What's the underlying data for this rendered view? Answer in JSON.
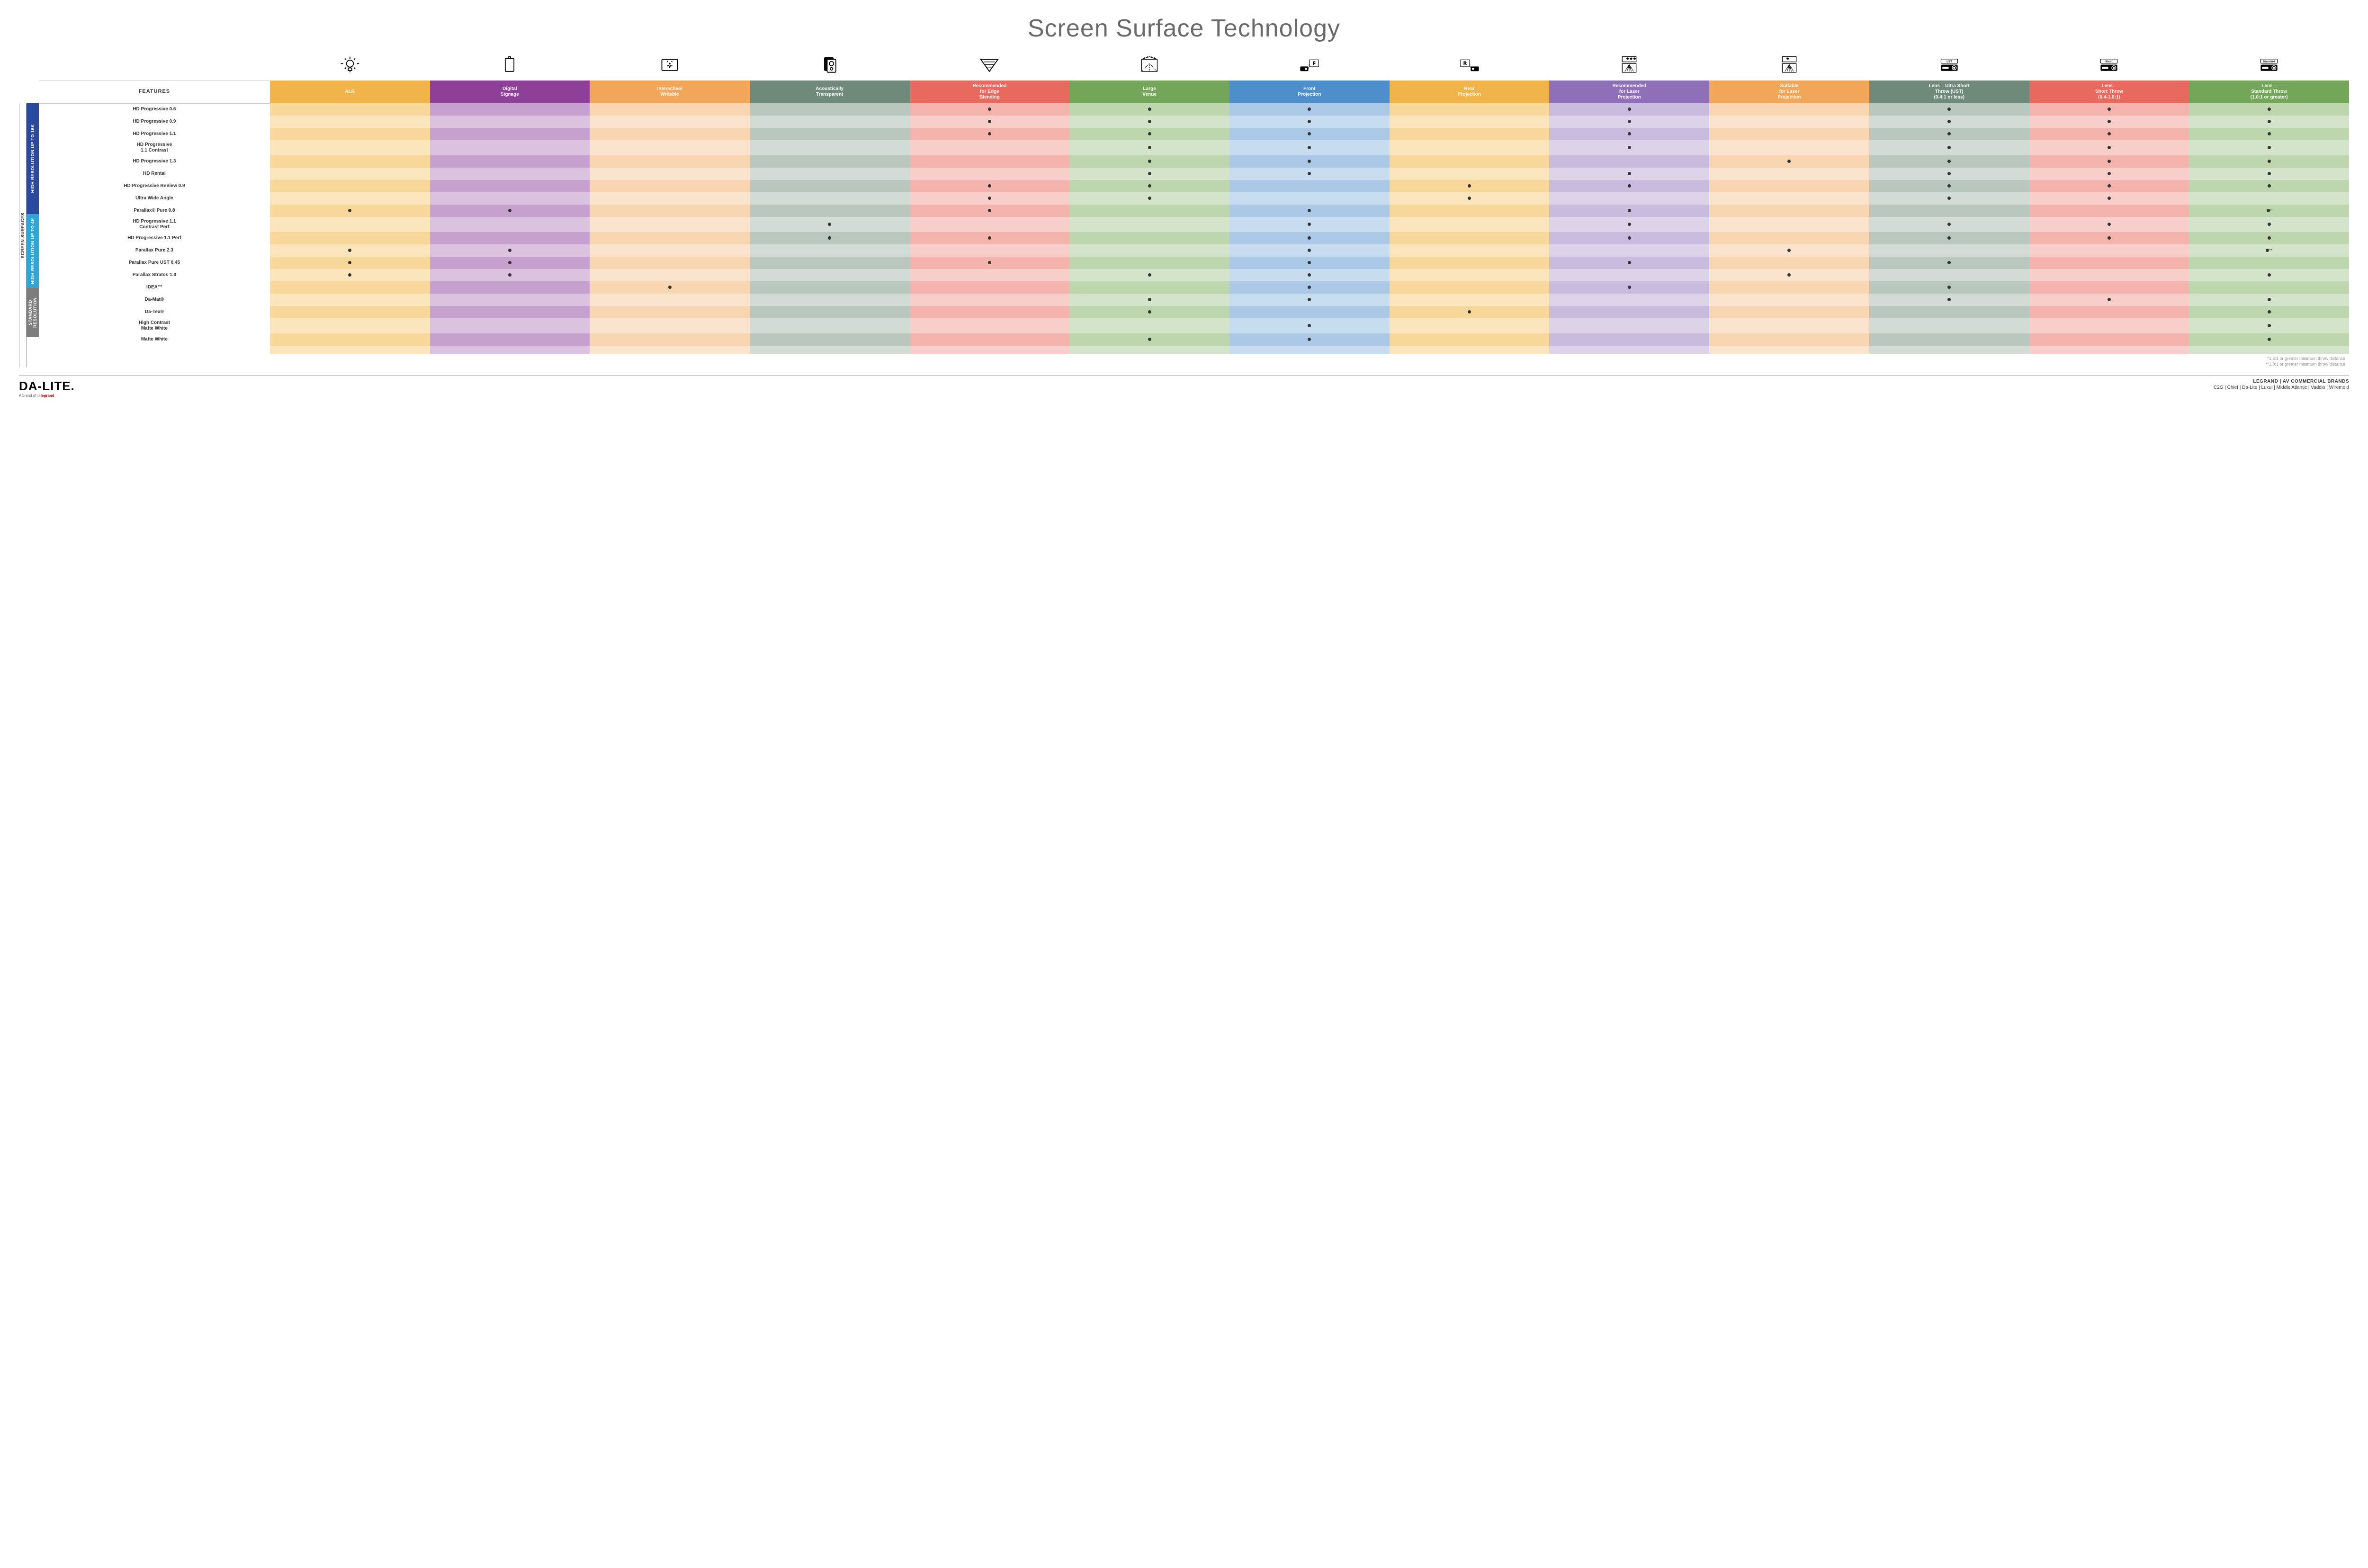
{
  "title": "Screen Surface Technology",
  "featuresHeader": "FEATURES",
  "sidebarOuter": "SCREEN SURFACES",
  "columns": [
    {
      "label": "ALR",
      "color": "#f0b44b",
      "alt": "#f8d79a"
    },
    {
      "label": "Digital\nSignage",
      "color": "#8e3f97",
      "alt": "#c7a1cd"
    },
    {
      "label": "Interactive/\nWritable",
      "color": "#f2a65a",
      "alt": "#f9d6b2"
    },
    {
      "label": "Acoustically\nTransparent",
      "color": "#6f8a7a",
      "alt": "#b9c7be"
    },
    {
      "label": "Recommended\nfor Edge\nBlending",
      "color": "#e86a5e",
      "alt": "#f4b4ad"
    },
    {
      "label": "Large\nVenue",
      "color": "#74a65a",
      "alt": "#bdd6ae"
    },
    {
      "label": "Front\nProjection",
      "color": "#4e8ecb",
      "alt": "#abc9e6"
    },
    {
      "label": "Rear\nProjection",
      "color": "#f0b44b",
      "alt": "#f8d79a"
    },
    {
      "label": "Recommended\nfor Laser\nProjection",
      "color": "#8e6fb8",
      "alt": "#c9bbdd"
    },
    {
      "label": "Suitable\nfor Laser\nProjection",
      "color": "#f2a65a",
      "alt": "#f9d6b2"
    },
    {
      "label": "Lens – Ultra Short\nThrow (UST)\n(0.4:1 or less)",
      "color": "#6f8a7a",
      "alt": "#b9c7be"
    },
    {
      "label": "Lens –\nShort Throw\n(0.4-1.0:1)",
      "color": "#e86a5e",
      "alt": "#f4b4ad"
    },
    {
      "label": "Lens –\nStandard Throw\n(1.0:1 or greater)",
      "color": "#74a65a",
      "alt": "#bdd6ae"
    }
  ],
  "categories": [
    {
      "label": "HIGH RESOLUTION UP TO 16K",
      "color": "#2b4a9b",
      "rows": 9
    },
    {
      "label": "HIGH RESOLUTION UP TO 4K",
      "color": "#2fa6d6",
      "rows": 6
    },
    {
      "label": "STANDARD\nRESOLUTION",
      "color": "#7d7d7d",
      "rows": 4
    }
  ],
  "rows": [
    {
      "label": "HD Progressive 0.6",
      "cells": [
        "",
        "",
        "",
        "",
        "d",
        "d",
        "d",
        "",
        "d",
        "",
        "d",
        "d",
        "d"
      ]
    },
    {
      "label": "HD Progressive 0.9",
      "cells": [
        "",
        "",
        "",
        "",
        "d",
        "d",
        "d",
        "",
        "d",
        "",
        "d",
        "d",
        "d"
      ]
    },
    {
      "label": "HD Progressive 1.1",
      "cells": [
        "",
        "",
        "",
        "",
        "d",
        "d",
        "d",
        "",
        "d",
        "",
        "d",
        "d",
        "d"
      ]
    },
    {
      "label": "HD Progressive\n1.1 Contrast",
      "cells": [
        "",
        "",
        "",
        "",
        "",
        "d",
        "d",
        "",
        "d",
        "",
        "d",
        "d",
        "d"
      ]
    },
    {
      "label": "HD Progressive 1.3",
      "cells": [
        "",
        "",
        "",
        "",
        "",
        "d",
        "d",
        "",
        "",
        "d",
        "d",
        "d",
        "d"
      ]
    },
    {
      "label": "HD Rental",
      "cells": [
        "",
        "",
        "",
        "",
        "",
        "d",
        "d",
        "",
        "d",
        "",
        "d",
        "d",
        "d"
      ]
    },
    {
      "label": "HD Progressive ReView 0.9",
      "cells": [
        "",
        "",
        "",
        "",
        "d",
        "d",
        "",
        "d",
        "d",
        "",
        "d",
        "d",
        "d"
      ]
    },
    {
      "label": "Ultra Wide Angle",
      "cells": [
        "",
        "",
        "",
        "",
        "d",
        "d",
        "",
        "d",
        "",
        "",
        "d",
        "d",
        ""
      ]
    },
    {
      "label": "Parallax® Pure 0.8",
      "cells": [
        "d",
        "d",
        "",
        "",
        "d",
        "",
        "d",
        "",
        "d",
        "",
        "",
        "",
        "d*"
      ]
    },
    {
      "label": "HD Progressive 1.1\nContrast Perf",
      "cells": [
        "",
        "",
        "",
        "d",
        "",
        "",
        "d",
        "",
        "d",
        "",
        "d",
        "d",
        "d"
      ]
    },
    {
      "label": "HD Progressive 1.1 Perf",
      "cells": [
        "",
        "",
        "",
        "d",
        "d",
        "",
        "d",
        "",
        "d",
        "",
        "d",
        "d",
        "d"
      ]
    },
    {
      "label": "Parallax Pure 2.3",
      "cells": [
        "d",
        "d",
        "",
        "",
        "",
        "",
        "d",
        "",
        "",
        "d",
        "",
        "",
        "d**"
      ]
    },
    {
      "label": "Parallax Pure UST 0.45",
      "cells": [
        "d",
        "d",
        "",
        "",
        "d",
        "",
        "d",
        "",
        "d",
        "",
        "d",
        "",
        ""
      ]
    },
    {
      "label": "Parallax Stratos 1.0",
      "cells": [
        "d",
        "d",
        "",
        "",
        "",
        "d",
        "d",
        "",
        "",
        "d",
        "",
        "",
        "d"
      ]
    },
    {
      "label": "IDEA™",
      "cells": [
        "",
        "",
        "d",
        "",
        "",
        "",
        "d",
        "",
        "d",
        "",
        "d",
        "",
        ""
      ]
    },
    {
      "label": "Da-Mat®",
      "cells": [
        "",
        "",
        "",
        "",
        "",
        "d",
        "d",
        "",
        "",
        "",
        "d",
        "d",
        "d"
      ]
    },
    {
      "label": "Da-Tex®",
      "cells": [
        "",
        "",
        "",
        "",
        "",
        "d",
        "",
        "d",
        "",
        "",
        "",
        "",
        "d"
      ]
    },
    {
      "label": "High Contrast\nMatte White",
      "cells": [
        "",
        "",
        "",
        "",
        "",
        "",
        "d",
        "",
        "",
        "",
        "",
        "",
        "d"
      ]
    },
    {
      "label": "Matte White",
      "cells": [
        "",
        "",
        "",
        "",
        "",
        "d",
        "d",
        "",
        "",
        "",
        "",
        "",
        "d"
      ]
    }
  ],
  "footnote1": "*1.5:1 or greater minimum throw distance",
  "footnote2": "**1.8:1 or greater minimum throw distance",
  "logo": "DA-LITE.",
  "logoSubPrefix": "A brand of ",
  "logoSubBrand": "legrand",
  "brandsTitle": "LEGRAND | AV COMMERCIAL BRANDS",
  "brandsList": "C2G  |  Chief  |  Da-Lite  |  Luxul  |  Middle Atlantic  |  Vaddio  |  Wiremold",
  "projLabels": {
    "ust": "UST",
    "short": "Short",
    "standard": "Standard"
  },
  "iconLetters": {
    "front": "F",
    "rear": "R"
  }
}
